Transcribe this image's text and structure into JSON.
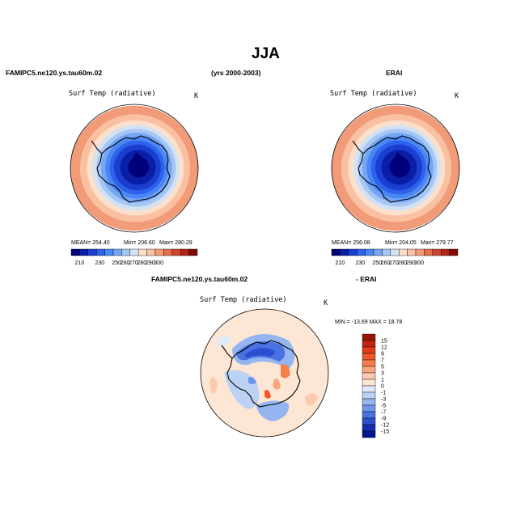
{
  "title": "JJA",
  "headers": {
    "left_model": "FAMIPC5.ne120.ys.tau60m.02",
    "years": "(yrs 2000-2003)",
    "right_obs": "ERAI",
    "diff_model": "FAMIPC5.ne120.ys.tau60m.02",
    "diff_obs": "- ERAI"
  },
  "chart_data": [
    {
      "type": "heatmap",
      "projection": "south polar stereographic",
      "variable": "Surf Temp (radiative)",
      "units": "K",
      "stats": {
        "mean_label": "MEAN= 254.40",
        "min_label": "Min= 206.60",
        "max_label": "Max= 280.29"
      },
      "colorbar": {
        "ticks": [
          "210",
          "230",
          "250",
          "260",
          "270",
          "280",
          "290",
          "300"
        ],
        "colors": [
          "#00007a",
          "#0a1fa8",
          "#1a3fd0",
          "#2f62ea",
          "#4a86f4",
          "#74a6f6",
          "#a6c6f4",
          "#d2e2f4",
          "#fde0cc",
          "#f9c1a2",
          "#f19b78",
          "#e46e4e",
          "#cf4430",
          "#b22414",
          "#7f0a05"
        ]
      }
    },
    {
      "type": "heatmap",
      "projection": "south polar stereographic",
      "variable": "Surf Temp (radiative)",
      "units": "K",
      "stats": {
        "mean_label": "MEAN= 256.08",
        "min_label": "Min= 204.05",
        "max_label": "Max= 279.77"
      },
      "colorbar": {
        "ticks": [
          "210",
          "230",
          "250",
          "260",
          "270",
          "280",
          "290",
          "300"
        ],
        "colors": [
          "#00007a",
          "#0a1fa8",
          "#1a3fd0",
          "#2f62ea",
          "#4a86f4",
          "#74a6f6",
          "#a6c6f4",
          "#d2e2f4",
          "#fde0cc",
          "#f9c1a2",
          "#f19b78",
          "#e46e4e",
          "#cf4430",
          "#b22414",
          "#7f0a05"
        ]
      }
    },
    {
      "type": "heatmap",
      "projection": "south polar stereographic",
      "variable": "Surf Temp (radiative)",
      "units": "K",
      "stats": {
        "minmax_label": "MIN = -13.69  MAX =  18.78"
      },
      "colorbar": {
        "ticks": [
          "15",
          "12",
          "9",
          "7",
          "5",
          "3",
          "1",
          "0",
          "-1",
          "-3",
          "-5",
          "-7",
          "-9",
          "-12",
          "-15"
        ],
        "colors": [
          "#9b1206",
          "#c0240c",
          "#dd3c1a",
          "#ef5a2c",
          "#f77f4e",
          "#f9a67c",
          "#fbcab0",
          "#fde6d4",
          "#dfeaf8",
          "#bcd2f4",
          "#94b5ef",
          "#6e95ea",
          "#4a72e2",
          "#2a4fd0",
          "#1030b0",
          "#001690"
        ]
      }
    }
  ]
}
